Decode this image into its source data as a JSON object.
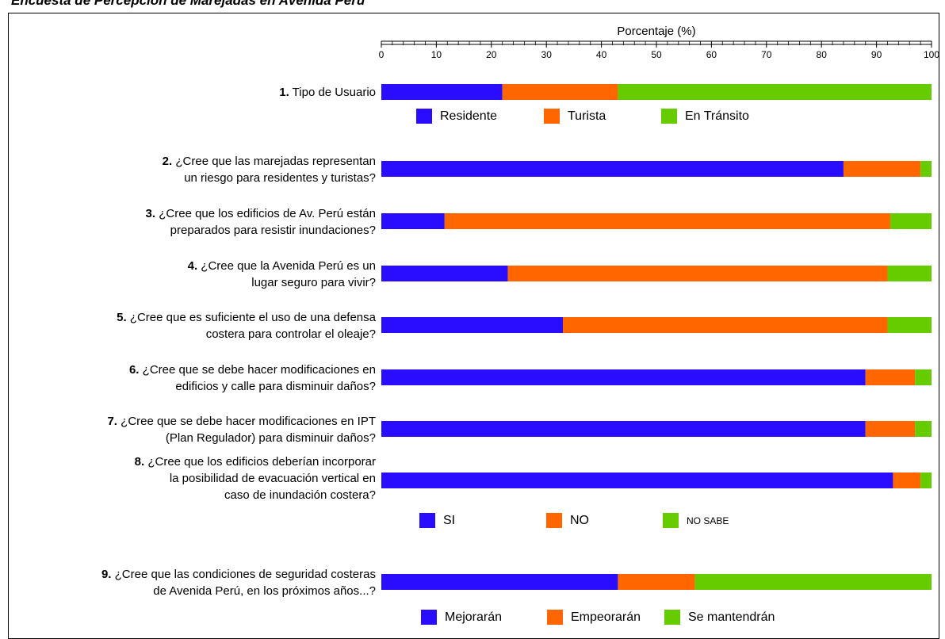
{
  "title": "Encuesta de Percepción de Marejadas en Avenida Perú",
  "colors": {
    "blue": "#2a0dff",
    "orange": "#ff6600",
    "green": "#66cc00"
  },
  "chart_data": {
    "type": "bar",
    "orientation": "horizontal",
    "stacked": true,
    "xlabel": "Porcentaje (%)",
    "xlim": [
      0,
      100
    ],
    "xticks": [
      "0",
      "10",
      "20",
      "30",
      "40",
      "50",
      "60",
      "70",
      "80",
      "90",
      "100"
    ],
    "axis_position": "top",
    "grid": false,
    "questions": [
      {
        "number": "1.",
        "lines": [
          "Tipo de Usuario"
        ],
        "values": [
          22,
          21,
          57
        ]
      },
      {
        "number": "2.",
        "lines": [
          "¿Cree que las marejadas representan",
          "un riesgo para residentes y turistas?"
        ],
        "values": [
          84,
          14,
          2
        ]
      },
      {
        "number": "3.",
        "lines": [
          "¿Cree que los edificios de Av. Perú están",
          "preparados para resistir inundaciones?"
        ],
        "values": [
          11.5,
          81,
          7.5
        ]
      },
      {
        "number": "4.",
        "lines": [
          "¿Cree que la Avenida Perú es un",
          "lugar seguro para vivir?"
        ],
        "values": [
          23,
          69,
          8
        ]
      },
      {
        "number": "5.",
        "lines": [
          "¿Cree que es suficiente el uso de una defensa",
          "costera para controlar el oleaje?"
        ],
        "values": [
          33,
          59,
          8
        ]
      },
      {
        "number": "6.",
        "lines": [
          "¿Cree que se debe hacer modificaciones en",
          "edificios y calle para disminuir daños?"
        ],
        "values": [
          88,
          9,
          3
        ]
      },
      {
        "number": "7.",
        "lines": [
          "¿Cree que se debe hacer modificaciones en IPT",
          "(Plan Regulador) para disminuir daños?"
        ],
        "values": [
          88,
          9,
          3
        ]
      },
      {
        "number": "8.",
        "lines": [
          "¿Cree que los edificios deberían incorporar",
          "la posibilidad de evacuación vertical en",
          "caso de inundación costera?"
        ],
        "values": [
          93,
          5,
          2
        ]
      },
      {
        "number": "9.",
        "lines": [
          "¿Cree que las condiciones de seguridad costeras",
          "de Avenida Perú, en los próximos años...?"
        ],
        "values": [
          43,
          14,
          43
        ]
      }
    ],
    "legends": [
      {
        "name": "legend-tipo-usuario",
        "after_question": 1,
        "size": "normal",
        "labels": [
          "Residente",
          "Turista",
          "En Tránsito"
        ]
      },
      {
        "name": "legend-si-no",
        "after_question": 8,
        "size": "mixed",
        "labels": [
          "SI",
          "NO",
          "NO SABE"
        ]
      },
      {
        "name": "legend-futuro",
        "after_question": 9,
        "size": "normal",
        "labels": [
          "Mejorarán",
          "Empeorarán",
          "Se mantendrán"
        ]
      }
    ]
  }
}
